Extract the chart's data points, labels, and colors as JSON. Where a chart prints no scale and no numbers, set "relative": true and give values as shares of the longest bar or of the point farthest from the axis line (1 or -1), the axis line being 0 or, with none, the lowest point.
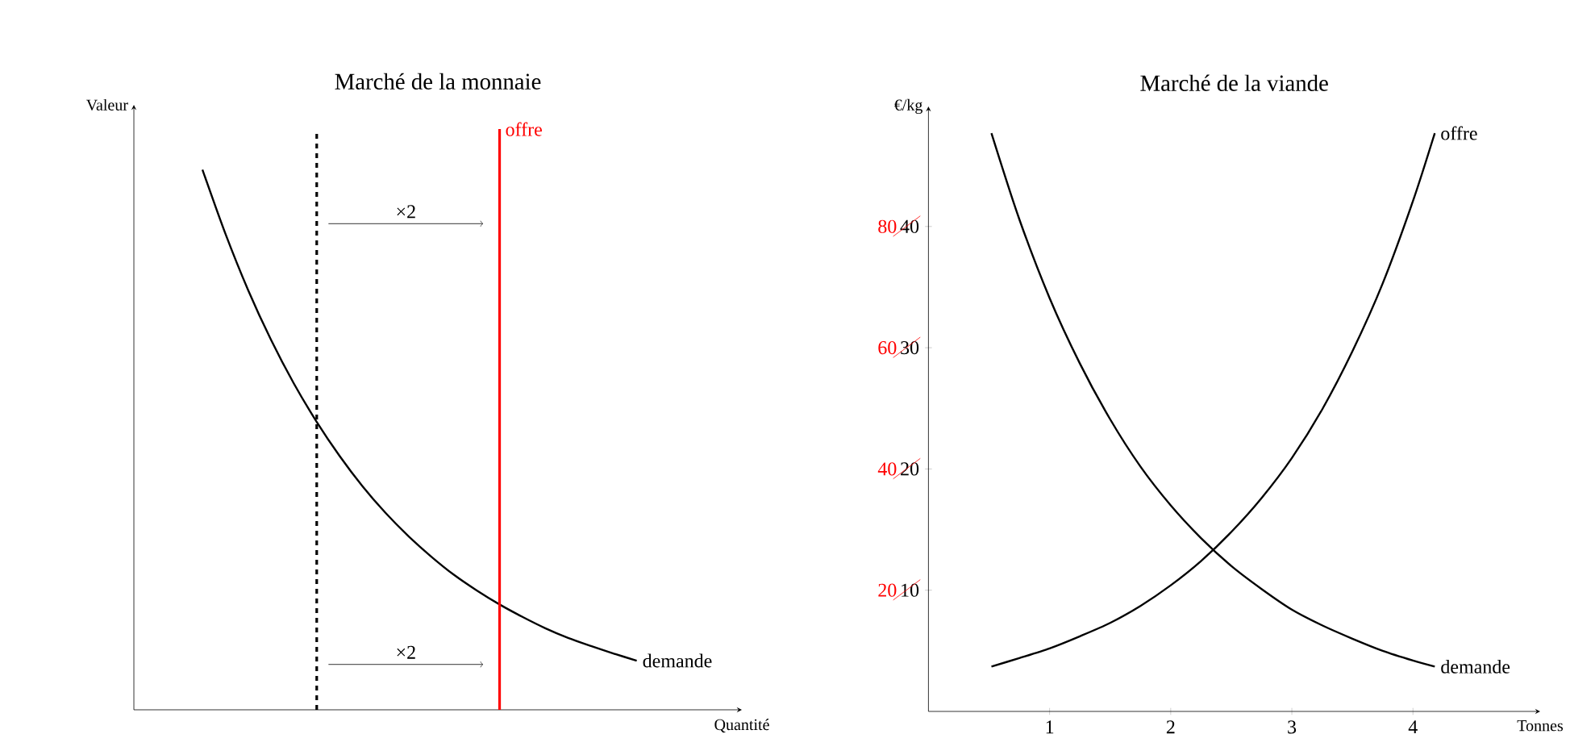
{
  "chart_data": [
    {
      "type": "line",
      "title": "Marché de la monnaie",
      "xlabel": "Quantité",
      "ylabel": "Valeur",
      "relative": true,
      "categories": [
        null,
        null,
        null,
        null,
        null,
        null,
        null,
        null,
        null,
        null,
        null,
        null,
        null,
        null,
        null,
        null,
        null,
        null,
        null,
        null,
        null,
        null,
        null,
        null,
        null,
        null,
        null
      ],
      "series": [
        {
          "name": "demande",
          "color": "#000000",
          "values": [
            null,
            null,
            null,
            1,
            0.882,
            0.777,
            0.685,
            0.604,
            0.533,
            0.47,
            0.414,
            0.365,
            0.322,
            0.284,
            0.25,
            0.221,
            0.195,
            0.172,
            0.151,
            0.133,
            0.118,
            0.104,
            0.091,
            null,
            null,
            null,
            null
          ]
        }
      ],
      "annotations": [
        "offre",
        "×2",
        "×2"
      ]
    },
    {
      "type": "line",
      "title": "Marché de la viande",
      "xlabel": "Tonnes",
      "ylabel": "€/kg",
      "xlim": [
        0,
        5.05
      ],
      "ylim": [
        0,
        49.9
      ],
      "xticks": [
        1,
        2,
        3,
        4
      ],
      "yticks": [
        10,
        20,
        30,
        40
      ],
      "y2lim": [
        0,
        99.8
      ],
      "y2ticks": [
        20,
        40,
        60,
        80
      ],
      "series": [
        {
          "name": "demande",
          "color": "#000000",
          "x": [
            0.52,
            0.75,
            1,
            1.25,
            1.5,
            1.75,
            2,
            2.25,
            2.5,
            2.75,
            3,
            3.25,
            3.5,
            3.75,
            4,
            4.18
          ],
          "values": [
            47.7,
            40.6,
            34.1,
            28.7,
            24.1,
            20.2,
            17.0,
            14.3,
            12.0,
            10.1,
            8.4,
            7.1,
            6.0,
            5.0,
            4.2,
            3.7
          ]
        },
        {
          "name": "offre",
          "color": "#000000",
          "x": [
            0.52,
            0.75,
            1,
            1.25,
            1.5,
            1.75,
            2,
            2.25,
            2.5,
            2.75,
            3,
            3.25,
            3.5,
            3.75,
            4,
            4.18
          ],
          "values": [
            3.7,
            4.4,
            5.2,
            6.2,
            7.3,
            8.7,
            10.4,
            12.4,
            14.8,
            17.6,
            20.9,
            24.9,
            29.7,
            35.3,
            42.1,
            47.7
          ]
        }
      ]
    }
  ]
}
